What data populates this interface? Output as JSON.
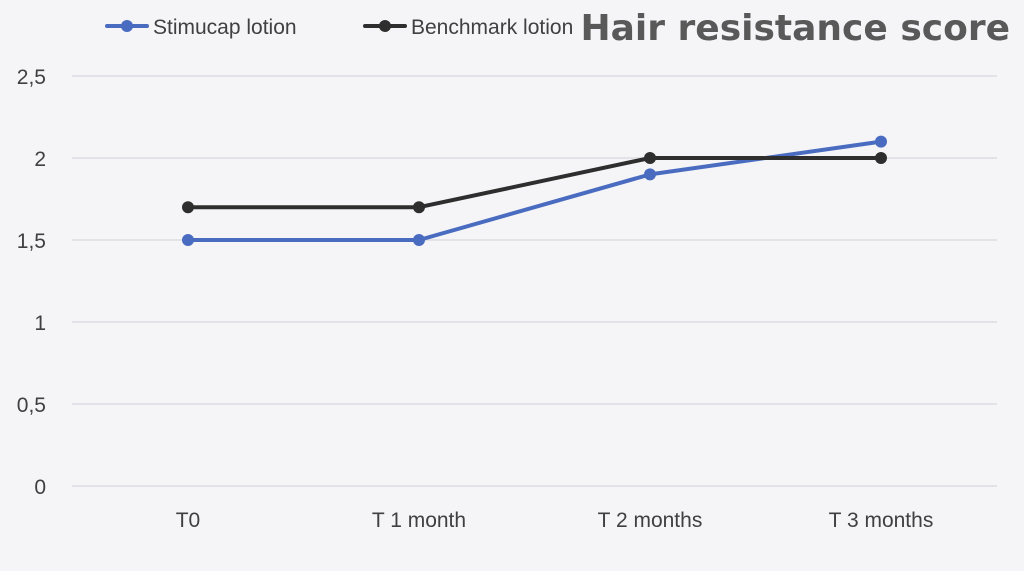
{
  "chart_data": {
    "type": "line",
    "title": "Hair resistance score",
    "categories": [
      "T0",
      "T 1 month",
      "T 2 months",
      "T 3 months"
    ],
    "series": [
      {
        "name": "Stimucap lotion",
        "values": [
          1.5,
          1.5,
          1.9,
          2.1
        ],
        "color": "#4a6cc0"
      },
      {
        "name": "Benchmark lotion",
        "values": [
          1.7,
          1.7,
          2.0,
          2.0
        ],
        "color": "#2e2e2e"
      }
    ],
    "y_ticks": [
      "0",
      "0,5",
      "1",
      "1,5",
      "2",
      "2,5"
    ],
    "y_tick_values": [
      0,
      0.5,
      1,
      1.5,
      2,
      2.5
    ],
    "ylim": [
      0,
      2.5
    ],
    "grid": true,
    "legend_position": "top-left",
    "colors": {
      "background": "#f5f5f7",
      "grid": "#d6d8e0",
      "text": "#404040",
      "title": "#595959"
    }
  }
}
